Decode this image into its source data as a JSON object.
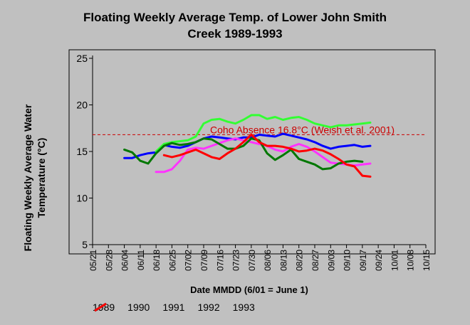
{
  "title_line1": "Floating Weekly Average Temp. of Lower John Smith",
  "title_line2": "Creek 1989-1993",
  "ylabel": "Floating Weekly Average Water Temperature (°C)",
  "xlabel": "Date MMDD (6/01 = June 1)",
  "annotation": "Coho Absence 16.8°C (Welsh et al. 2001)",
  "colors": {
    "background": "#c0c0c0",
    "1989": "#0000ff",
    "1990": "#33ff33",
    "1991": "#ff33ff",
    "1992": "#007700",
    "1993": "#ff0000",
    "threshold": "#cc0000"
  },
  "chart_data": {
    "type": "line",
    "title": "Floating Weekly Average Temp. of Lower John Smith Creek 1989-1993",
    "xlabel": "Date MMDD (6/01 = June 1)",
    "ylabel": "Floating Weekly Average Water Temperature (°C)",
    "x_ticks": [
      "05/21",
      "05/28",
      "06/04",
      "06/11",
      "06/18",
      "06/25",
      "07/02",
      "07/09",
      "07/16",
      "07/23",
      "07/30",
      "08/06",
      "08/13",
      "08/20",
      "08/27",
      "09/03",
      "09/10",
      "09/17",
      "09/24",
      "10/01",
      "10/08",
      "10/15"
    ],
    "ylim": [
      5,
      25
    ],
    "y_ticks": [
      5,
      10,
      15,
      20,
      25
    ],
    "threshold": {
      "value": 16.8,
      "label": "Coho Absence 16.8°C (Welsh et al. 2001)"
    },
    "series": [
      {
        "name": "1989",
        "points": [
          [
            2,
            14.3
          ],
          [
            2.5,
            14.3
          ],
          [
            3,
            14.6
          ],
          [
            3.5,
            14.8
          ],
          [
            4,
            14.9
          ],
          [
            4.5,
            15.7
          ],
          [
            5,
            15.5
          ],
          [
            5.5,
            15.4
          ],
          [
            6,
            15.6
          ],
          [
            6.5,
            16.0
          ],
          [
            7,
            16.4
          ],
          [
            7.5,
            16.6
          ],
          [
            8,
            16.5
          ],
          [
            8.5,
            16.4
          ],
          [
            9,
            16.3
          ],
          [
            9.5,
            16.5
          ],
          [
            10,
            16.5
          ],
          [
            10.5,
            16.8
          ],
          [
            11,
            16.7
          ],
          [
            11.5,
            16.6
          ],
          [
            12,
            16.9
          ],
          [
            12.5,
            16.7
          ],
          [
            13,
            16.5
          ],
          [
            13.5,
            16.3
          ],
          [
            14,
            16.0
          ],
          [
            14.5,
            15.6
          ],
          [
            15,
            15.3
          ],
          [
            15.5,
            15.5
          ],
          [
            16,
            15.6
          ],
          [
            16.5,
            15.7
          ],
          [
            17,
            15.5
          ],
          [
            17.5,
            15.6
          ]
        ]
      },
      {
        "name": "1990",
        "points": [
          [
            4,
            15.0
          ],
          [
            4.5,
            15.8
          ],
          [
            5,
            16.0
          ],
          [
            5.5,
            16.1
          ],
          [
            6,
            16.2
          ],
          [
            6.5,
            16.6
          ],
          [
            7,
            18.0
          ],
          [
            7.5,
            18.4
          ],
          [
            8,
            18.5
          ],
          [
            8.5,
            18.2
          ],
          [
            9,
            18.0
          ],
          [
            9.5,
            18.4
          ],
          [
            10,
            18.9
          ],
          [
            10.5,
            18.9
          ],
          [
            11,
            18.5
          ],
          [
            11.5,
            18.7
          ],
          [
            12,
            18.4
          ],
          [
            12.5,
            18.6
          ],
          [
            13,
            18.7
          ],
          [
            13.5,
            18.4
          ],
          [
            14,
            18.0
          ],
          [
            14.5,
            17.8
          ],
          [
            15,
            17.6
          ],
          [
            15.5,
            17.8
          ],
          [
            16,
            17.8
          ],
          [
            16.5,
            17.9
          ],
          [
            17,
            18.0
          ],
          [
            17.5,
            18.1
          ]
        ]
      },
      {
        "name": "1991",
        "points": [
          [
            4,
            12.8
          ],
          [
            4.5,
            12.8
          ],
          [
            5,
            13.1
          ],
          [
            5.5,
            14.0
          ],
          [
            6,
            15.2
          ],
          [
            6.5,
            15.4
          ],
          [
            7,
            15.3
          ],
          [
            7.5,
            15.6
          ],
          [
            8,
            15.9
          ],
          [
            8.5,
            16.2
          ],
          [
            9,
            16.4
          ],
          [
            9.5,
            16.2
          ],
          [
            10,
            16.0
          ],
          [
            10.5,
            15.8
          ],
          [
            11,
            15.6
          ],
          [
            11.5,
            15.2
          ],
          [
            12,
            15.0
          ],
          [
            12.5,
            15.5
          ],
          [
            13,
            15.8
          ],
          [
            13.5,
            15.5
          ],
          [
            14,
            15.0
          ],
          [
            14.5,
            14.4
          ],
          [
            15,
            13.8
          ],
          [
            15.5,
            13.7
          ],
          [
            16,
            13.6
          ],
          [
            16.5,
            13.5
          ],
          [
            17,
            13.6
          ],
          [
            17.5,
            13.7
          ]
        ]
      },
      {
        "name": "1992",
        "points": [
          [
            2,
            15.2
          ],
          [
            2.5,
            14.9
          ],
          [
            3,
            14.0
          ],
          [
            3.5,
            13.7
          ],
          [
            4,
            14.8
          ],
          [
            4.5,
            15.6
          ],
          [
            5,
            15.9
          ],
          [
            5.5,
            15.7
          ],
          [
            6,
            15.8
          ],
          [
            6.5,
            16.0
          ],
          [
            7,
            16.4
          ],
          [
            7.5,
            16.3
          ],
          [
            8,
            15.8
          ],
          [
            8.5,
            15.3
          ],
          [
            9,
            15.3
          ],
          [
            9.5,
            15.6
          ],
          [
            10,
            16.4
          ],
          [
            10.5,
            16.2
          ],
          [
            11,
            14.8
          ],
          [
            11.5,
            14.1
          ],
          [
            12,
            14.6
          ],
          [
            12.5,
            15.2
          ],
          [
            13,
            14.2
          ],
          [
            13.5,
            13.9
          ],
          [
            14,
            13.6
          ],
          [
            14.5,
            13.1
          ],
          [
            15,
            13.2
          ],
          [
            15.5,
            13.7
          ],
          [
            16,
            13.9
          ],
          [
            16.5,
            14.0
          ],
          [
            17,
            13.9
          ]
        ]
      },
      {
        "name": "1993",
        "points": [
          [
            4.5,
            14.6
          ],
          [
            5,
            14.4
          ],
          [
            5.5,
            14.6
          ],
          [
            6,
            14.9
          ],
          [
            6.5,
            15.2
          ],
          [
            7,
            14.8
          ],
          [
            7.5,
            14.4
          ],
          [
            8,
            14.2
          ],
          [
            8.5,
            14.8
          ],
          [
            9,
            15.3
          ],
          [
            9.5,
            16.0
          ],
          [
            10,
            16.8
          ],
          [
            10.5,
            16.0
          ],
          [
            11,
            15.6
          ],
          [
            11.5,
            15.6
          ],
          [
            12,
            15.5
          ],
          [
            12.5,
            15.3
          ],
          [
            13,
            15.0
          ],
          [
            13.5,
            15.1
          ],
          [
            14,
            15.3
          ],
          [
            14.5,
            15.1
          ],
          [
            15,
            14.7
          ],
          [
            15.5,
            14.2
          ],
          [
            16,
            13.6
          ],
          [
            16.5,
            13.4
          ],
          [
            17,
            12.4
          ],
          [
            17.5,
            12.3
          ]
        ]
      }
    ],
    "legend_placement": "bottom"
  }
}
